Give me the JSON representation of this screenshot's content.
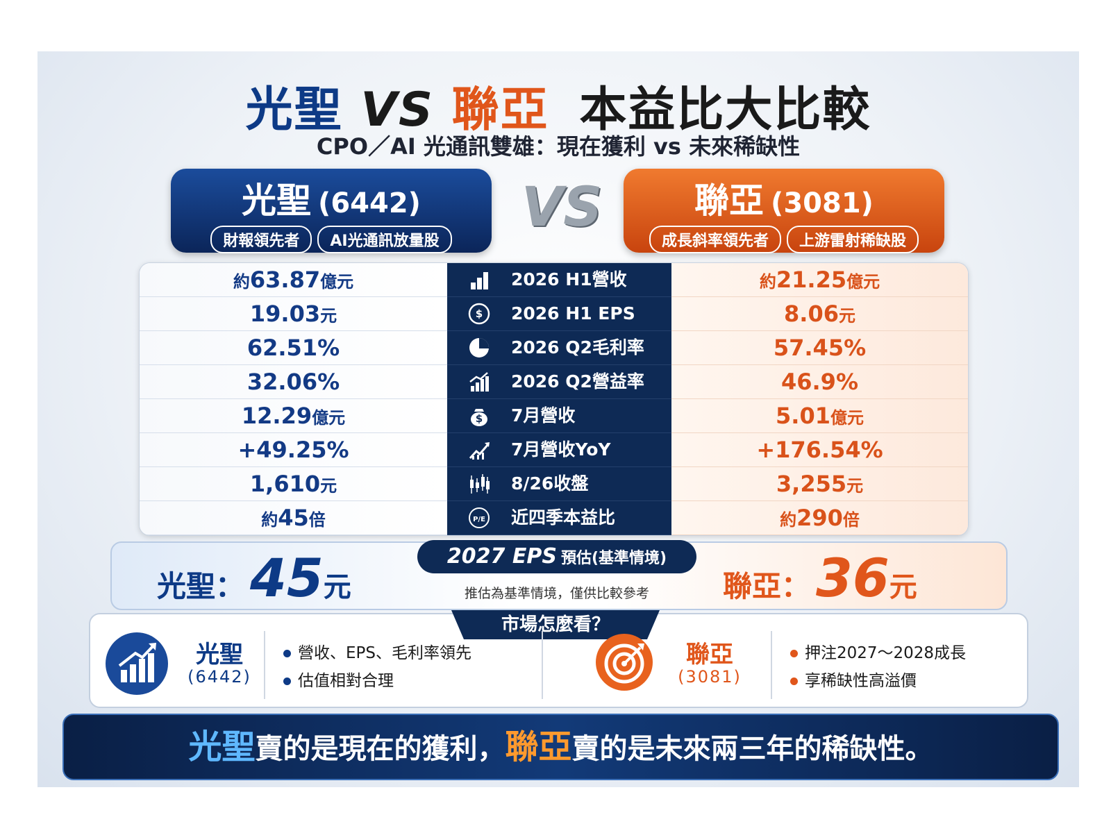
{
  "title": {
    "left": "光聖",
    "vs": "VS",
    "right": "聯亞",
    "rest": "本益比大比較"
  },
  "subtitle": "CPO／AI 光通訊雙雄：現在獲利 vs 未來稀缺性",
  "left": {
    "name": "光聖",
    "code": "(6442)",
    "tags": [
      "財報領先者",
      "AI光通訊放量股"
    ]
  },
  "vs_badge": "VS",
  "right": {
    "name": "聯亞",
    "code": "(3081)",
    "tags": [
      "成長斜率領先者",
      "上游雷射稀缺股"
    ]
  },
  "table": {
    "rows": [
      {
        "metric": "2026 H1營收",
        "left": "約63.87億元",
        "right": "約21.25億元"
      },
      {
        "metric": "2026 H1  EPS",
        "icon_text": "$",
        "left": "19.03元",
        "right": "8.06元"
      },
      {
        "metric": "2026 Q2毛利率",
        "left": "62.51%",
        "right": "57.45%"
      },
      {
        "metric": "2026 Q2營益率",
        "left": "32.06%",
        "right": "46.9%"
      },
      {
        "metric": "7月營收",
        "icon_text": "$",
        "left": "12.29億元",
        "right": "5.01億元"
      },
      {
        "metric": "7月營收YoY",
        "left": "+49.25%",
        "right": "+176.54%"
      },
      {
        "metric": "8/26收盤",
        "left": "1,610元",
        "right": "3,255元"
      },
      {
        "metric": "近四季本益比",
        "icon_text": "P/E",
        "left": "約45倍",
        "right": "約290倍"
      }
    ]
  },
  "eps": {
    "label": "2027 EPS",
    "label_note": "預估(基準情境)",
    "note": "推估為基準情境，僅供比較參考",
    "left": {
      "name": "光聖：",
      "value": "45",
      "unit": "元"
    },
    "right": {
      "name": "聯亞：",
      "value": "36",
      "unit": "元"
    }
  },
  "market": {
    "heading": "市場怎麼看？",
    "left": {
      "name": "光聖",
      "code": "(6442)",
      "points": [
        "營收、EPS、毛利率領先",
        "估值相對合理"
      ]
    },
    "right": {
      "name": "聯亞",
      "code": "(3081)",
      "points": [
        "押注2027～2028成長",
        "享稀缺性高溢價"
      ]
    }
  },
  "banner": {
    "a": "光聖",
    "b": "賣的是現在的獲利，",
    "c": "聯亞",
    "d": "賣的是未來兩三年的稀缺性。"
  }
}
